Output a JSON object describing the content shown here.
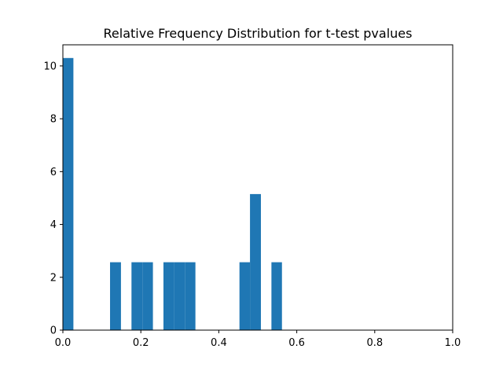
{
  "chart_data": {
    "type": "bar",
    "title": "Relative Frequency Distribution for t-test pvalues",
    "xlabel": "",
    "ylabel": "",
    "xlim": [
      0,
      1
    ],
    "ylim": [
      0,
      10.8
    ],
    "grid": false,
    "bar_color": "#1f77b4",
    "bin_width": 0.0272,
    "bins": [
      {
        "x0": 0.0,
        "x1": 0.027,
        "value": 10.3
      },
      {
        "x0": 0.121,
        "x1": 0.149,
        "value": 2.57
      },
      {
        "x0": 0.176,
        "x1": 0.204,
        "value": 2.57
      },
      {
        "x0": 0.204,
        "x1": 0.231,
        "value": 2.57
      },
      {
        "x0": 0.258,
        "x1": 0.285,
        "value": 2.57
      },
      {
        "x0": 0.285,
        "x1": 0.313,
        "value": 2.57
      },
      {
        "x0": 0.313,
        "x1": 0.34,
        "value": 2.57
      },
      {
        "x0": 0.453,
        "x1": 0.48,
        "value": 2.57
      },
      {
        "x0": 0.48,
        "x1": 0.508,
        "value": 5.15
      },
      {
        "x0": 0.535,
        "x1": 0.562,
        "value": 2.57
      }
    ],
    "x_ticks": [
      0,
      0.2,
      0.4,
      0.6,
      0.8,
      1
    ],
    "x_tick_labels": [
      "0.0",
      "0.2",
      "0.4",
      "0.6",
      "0.8",
      "1.0"
    ],
    "y_ticks": [
      0,
      2,
      4,
      6,
      8,
      10
    ],
    "y_tick_labels": [
      "0",
      "2",
      "4",
      "6",
      "8",
      "10"
    ]
  }
}
